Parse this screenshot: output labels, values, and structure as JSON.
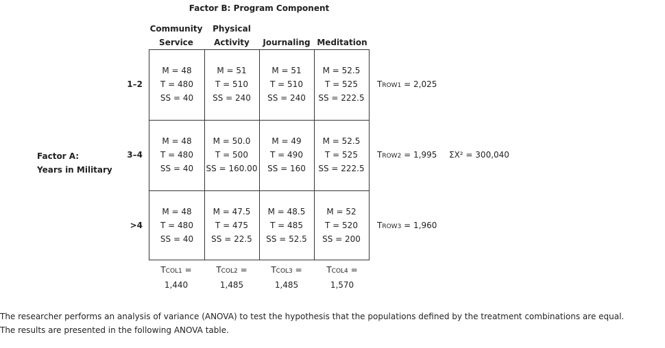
{
  "factor_b": {
    "title": "Factor B: Program Component"
  },
  "columns": [
    {
      "line1": "Community",
      "line2": "Service"
    },
    {
      "line1": "Physical",
      "line2": "Activity"
    },
    {
      "line1": "",
      "line2": "Journaling"
    },
    {
      "line1": "",
      "line2": "Meditation"
    }
  ],
  "factor_a": {
    "line1": "Factor A:",
    "line2": "Years in Military"
  },
  "rows": [
    {
      "label": "1–2"
    },
    {
      "label": "3–4"
    },
    {
      "label": ">4"
    }
  ],
  "cells": [
    [
      {
        "m": "M = 48",
        "t": "T = 480",
        "ss": "SS = 40"
      },
      {
        "m": "M = 51",
        "t": "T = 510",
        "ss": "SS = 240"
      },
      {
        "m": "M = 51",
        "t": "T = 510",
        "ss": "SS = 240"
      },
      {
        "m": "M = 52.5",
        "t": "T = 525",
        "ss": "SS = 222.5"
      }
    ],
    [
      {
        "m": "M = 48",
        "t": "T = 480",
        "ss": "SS = 40"
      },
      {
        "m": "M = 50.0",
        "t": "T = 500",
        "ss": "SS = 160.00"
      },
      {
        "m": "M = 49",
        "t": "T = 490",
        "ss": "SS = 160"
      },
      {
        "m": "M = 52.5",
        "t": "T = 525",
        "ss": "SS = 222.5"
      }
    ],
    [
      {
        "m": "M = 48",
        "t": "T = 480",
        "ss": "SS = 40"
      },
      {
        "m": "M = 47.5",
        "t": "T = 475",
        "ss": "SS = 22.5"
      },
      {
        "m": "M = 48.5",
        "t": "T = 485",
        "ss": "SS = 52.5"
      },
      {
        "m": "M = 52",
        "t": "T = 520",
        "ss": "SS = 200"
      }
    ]
  ],
  "col_totals": [
    {
      "t": "T",
      "sub": "COL1",
      "eq": " =",
      "value": "1,440"
    },
    {
      "t": "T",
      "sub": "COL2",
      "eq": " =",
      "value": "1,485"
    },
    {
      "t": "T",
      "sub": "COL3",
      "eq": " =",
      "value": "1,485"
    },
    {
      "t": "T",
      "sub": "COL4",
      "eq": " =",
      "value": "1,570"
    }
  ],
  "row_totals": [
    {
      "t": "T",
      "sub": "ROW1",
      "rest": " = 2,025"
    },
    {
      "t": "T",
      "sub": "ROW2",
      "rest": " = 1,995"
    },
    {
      "t": "T",
      "sub": "ROW3",
      "rest": " = 1,960"
    }
  ],
  "sum_x2": {
    "text": "ΣX² = 300,040"
  },
  "paragraph": {
    "line1": "The researcher performs an analysis of variance (ANOVA) to test the hypothesis that the populations defined by the treatment combinations are equal.",
    "line2": "The results are presented in the following ANOVA table."
  }
}
